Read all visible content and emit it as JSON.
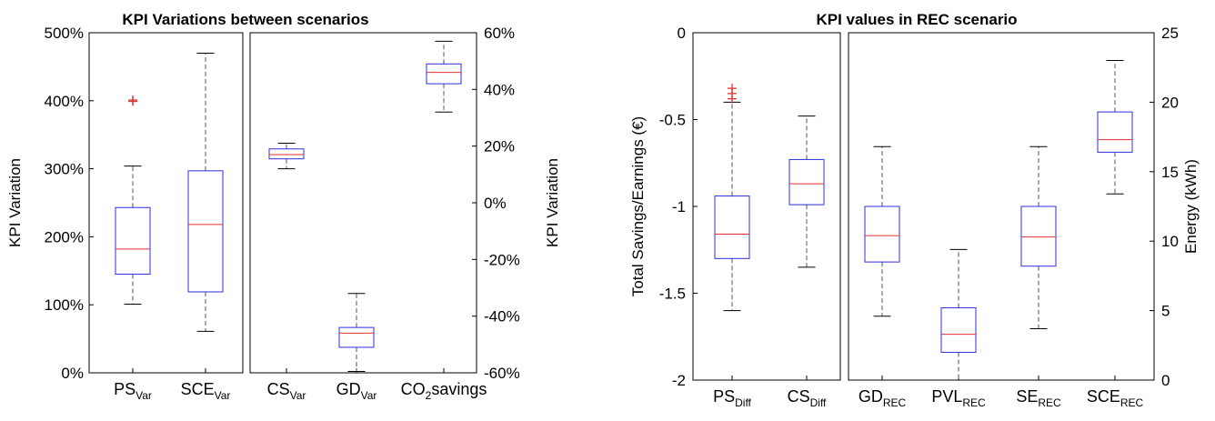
{
  "colors": {
    "box": "#2f2fe0",
    "median": "#e03030",
    "whisker": "#555555",
    "outlier": "#e03030",
    "axis": "#000000"
  },
  "chart_data": [
    {
      "type": "box",
      "title": "KPI Variations between scenarios",
      "panels": [
        {
          "ylabel": "KPI Variation",
          "ylabel_side": "left",
          "ylim": [
            0,
            500
          ],
          "yticks": [
            "0%",
            "100%",
            "200%",
            "300%",
            "400%",
            "500%"
          ],
          "ytick_values": [
            0,
            100,
            200,
            300,
            400,
            500
          ],
          "categories": [
            {
              "base": "PS",
              "sub": "Var",
              "suffix": ""
            },
            {
              "base": "SCE",
              "sub": "Var",
              "suffix": ""
            }
          ],
          "boxes": [
            {
              "whislo": 101,
              "q1": 145,
              "med": 182,
              "q3": 243,
              "whishi": 304,
              "fliers": [
                399,
                401
              ]
            },
            {
              "whislo": 61,
              "q1": 119,
              "med": 218,
              "q3": 297,
              "whishi": 470,
              "fliers": []
            }
          ]
        },
        {
          "ylabel": "KPI Variation",
          "ylabel_side": "right",
          "ylim": [
            -60,
            60
          ],
          "yticks": [
            "-60%",
            "-40%",
            "-20%",
            "0%",
            "20%",
            "40%",
            "60%"
          ],
          "ytick_values": [
            -60,
            -40,
            -20,
            0,
            20,
            40,
            60
          ],
          "categories": [
            {
              "base": "CS",
              "sub": "Var",
              "suffix": ""
            },
            {
              "base": "GD",
              "sub": "Var",
              "suffix": ""
            },
            {
              "base": "CO",
              "sub": "2",
              "suffix": "savings"
            }
          ],
          "boxes": [
            {
              "whislo": 12,
              "q1": 15.5,
              "med": 17,
              "q3": 19,
              "whishi": 21,
              "fliers": []
            },
            {
              "whislo": -59.5,
              "q1": -51,
              "med": -46,
              "q3": -44,
              "whishi": -32,
              "fliers": []
            },
            {
              "whislo": 32,
              "q1": 42,
              "med": 46,
              "q3": 49,
              "whishi": 57,
              "fliers": []
            }
          ]
        }
      ]
    },
    {
      "type": "box",
      "title": "KPI values in REC scenario",
      "panels": [
        {
          "ylabel": "Total Savings/Earnings (€)",
          "ylabel_side": "left",
          "ylim": [
            -2,
            0
          ],
          "yticks": [
            "-2",
            "-1.5",
            "-1",
            "-0.5",
            "0"
          ],
          "ytick_values": [
            -2,
            -1.5,
            -1,
            -0.5,
            0
          ],
          "categories": [
            {
              "base": "PS",
              "sub": "Diff",
              "suffix": ""
            },
            {
              "base": "CS",
              "sub": "Diff",
              "suffix": ""
            }
          ],
          "boxes": [
            {
              "whislo": -1.6,
              "q1": -1.3,
              "med": -1.16,
              "q3": -0.94,
              "whishi": -0.4,
              "fliers": [
                -0.32,
                -0.35,
                -0.38
              ]
            },
            {
              "whislo": -1.35,
              "q1": -0.99,
              "med": -0.87,
              "q3": -0.73,
              "whishi": -0.48,
              "fliers": []
            }
          ]
        },
        {
          "ylabel": "Energy (kWh)",
          "ylabel_side": "right",
          "ylim": [
            0,
            25
          ],
          "yticks": [
            "0",
            "5",
            "10",
            "15",
            "20",
            "25"
          ],
          "ytick_values": [
            0,
            5,
            10,
            15,
            20,
            25
          ],
          "categories": [
            {
              "base": "GD",
              "sub": "REC",
              "suffix": ""
            },
            {
              "base": "PVL",
              "sub": "REC",
              "suffix": ""
            },
            {
              "base": "SE",
              "sub": "REC",
              "suffix": ""
            },
            {
              "base": "SCE",
              "sub": "REC",
              "suffix": ""
            }
          ],
          "boxes": [
            {
              "whislo": 4.6,
              "q1": 8.5,
              "med": 10.4,
              "q3": 12.5,
              "whishi": 16.8,
              "fliers": []
            },
            {
              "whislo": 0,
              "q1": 2,
              "med": 3.3,
              "q3": 5.2,
              "whishi": 9.4,
              "fliers": []
            },
            {
              "whislo": 3.7,
              "q1": 8.2,
              "med": 10.3,
              "q3": 12.5,
              "whishi": 16.8,
              "fliers": []
            },
            {
              "whislo": 13.4,
              "q1": 16.4,
              "med": 17.3,
              "q3": 19.3,
              "whishi": 23,
              "fliers": []
            }
          ]
        }
      ]
    }
  ]
}
